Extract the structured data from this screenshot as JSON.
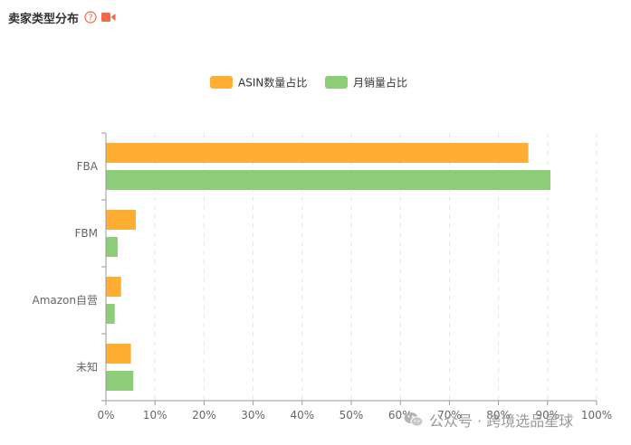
{
  "header": {
    "title": "卖家类型分布",
    "help_glyph": "?",
    "help_icon": "question-circle-icon",
    "video_icon": "video-camera-icon"
  },
  "colors": {
    "asin": "#FFAE34",
    "sales": "#8ECD78",
    "icon_orange": "#F2694A",
    "axis_text": "#666666",
    "grid": "#E3E3E3"
  },
  "chart_data": {
    "type": "bar",
    "orientation": "horizontal",
    "categories": [
      "FBA",
      "FBM",
      "Amazon自营",
      "未知"
    ],
    "series": [
      {
        "name": "ASIN数量占比",
        "values": [
          86,
          6,
          3,
          5
        ]
      },
      {
        "name": "月销量占比",
        "values": [
          90.5,
          2.3,
          1.7,
          5.5
        ]
      }
    ],
    "x_ticks": [
      "0%",
      "10%",
      "20%",
      "30%",
      "40%",
      "50%",
      "60%",
      "70%",
      "80%",
      "90%",
      "100%"
    ],
    "xlim": [
      0,
      100
    ],
    "legend_position": "top-center",
    "grid": "vertical-dashed"
  },
  "watermark": {
    "text": "公众号 · 跨境选品星球",
    "icon": "wechat-icon"
  }
}
